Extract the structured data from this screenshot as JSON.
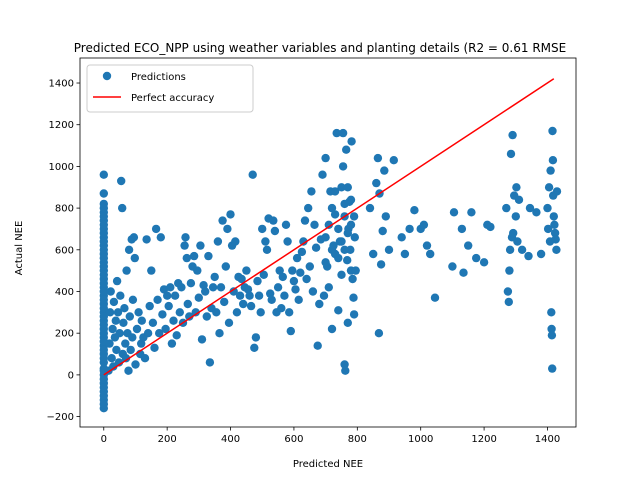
{
  "chart_data": {
    "type": "scatter",
    "title": "Predicted ECO_NPP using weather variables and planting details (R2 = 0.61  RMSE",
    "xlabel": "Predicted NEE",
    "ylabel": "Actual NEE",
    "xlim": [
      -75,
      1490
    ],
    "ylim": [
      -250,
      1520
    ],
    "xticks": [
      0,
      200,
      400,
      600,
      800,
      1000,
      1200,
      1400
    ],
    "yticks": [
      -200,
      0,
      200,
      400,
      600,
      800,
      1000,
      1200,
      1400
    ],
    "grid": false,
    "legend_position": "upper left",
    "series": [
      {
        "name": "Predictions",
        "kind": "scatter",
        "color": "#1f77b4",
        "points": [
          [
            0,
            -160
          ],
          [
            0,
            -120
          ],
          [
            0,
            -80
          ],
          [
            0,
            -40
          ],
          [
            0,
            0
          ],
          [
            0,
            30
          ],
          [
            0,
            60
          ],
          [
            0,
            100
          ],
          [
            0,
            140
          ],
          [
            0,
            180
          ],
          [
            0,
            220
          ],
          [
            0,
            260
          ],
          [
            0,
            300
          ],
          [
            0,
            340
          ],
          [
            0,
            380
          ],
          [
            0,
            420
          ],
          [
            0,
            460
          ],
          [
            0,
            500
          ],
          [
            0,
            540
          ],
          [
            0,
            580
          ],
          [
            0,
            620
          ],
          [
            0,
            660
          ],
          [
            0,
            700
          ],
          [
            0,
            740
          ],
          [
            0,
            780
          ],
          [
            0,
            820
          ],
          [
            0,
            870
          ],
          [
            0,
            960
          ],
          [
            0,
            640
          ],
          [
            0,
            560
          ],
          [
            0,
            480
          ],
          [
            0,
            360
          ],
          [
            0,
            240
          ],
          [
            0,
            160
          ],
          [
            0,
            80
          ],
          [
            0,
            20
          ],
          [
            0,
            -20
          ],
          [
            0,
            -60
          ],
          [
            0,
            -100
          ],
          [
            0,
            -140
          ],
          [
            0,
            120
          ],
          [
            0,
            200
          ],
          [
            0,
            280
          ],
          [
            0,
            320
          ],
          [
            0,
            400
          ],
          [
            0,
            440
          ],
          [
            0,
            520
          ],
          [
            0,
            600
          ],
          [
            0,
            680
          ],
          [
            0,
            720
          ],
          [
            0,
            760
          ],
          [
            0,
            800
          ],
          [
            15,
            20
          ],
          [
            18,
            150
          ],
          [
            20,
            300
          ],
          [
            22,
            400
          ],
          [
            25,
            80
          ],
          [
            28,
            220
          ],
          [
            30,
            40
          ],
          [
            32,
            350
          ],
          [
            35,
            180
          ],
          [
            38,
            260
          ],
          [
            40,
            120
          ],
          [
            42,
            450
          ],
          [
            45,
            300
          ],
          [
            48,
            60
          ],
          [
            50,
            200
          ],
          [
            52,
            380
          ],
          [
            55,
            930
          ],
          [
            58,
            800
          ],
          [
            60,
            100
          ],
          [
            62,
            250
          ],
          [
            65,
            320
          ],
          [
            68,
            150
          ],
          [
            70,
            80
          ],
          [
            72,
            500
          ],
          [
            75,
            200
          ],
          [
            78,
            20
          ],
          [
            80,
            600
          ],
          [
            82,
            280
          ],
          [
            85,
            120
          ],
          [
            88,
            650
          ],
          [
            90,
            180
          ],
          [
            92,
            360
          ],
          [
            95,
            660
          ],
          [
            98,
            560
          ],
          [
            100,
            50
          ],
          [
            105,
            220
          ],
          [
            110,
            300
          ],
          [
            115,
            100
          ],
          [
            118,
            150
          ],
          [
            120,
            260
          ],
          [
            125,
            180
          ],
          [
            130,
            80
          ],
          [
            135,
            650
          ],
          [
            140,
            200
          ],
          [
            145,
            330
          ],
          [
            150,
            500
          ],
          [
            155,
            250
          ],
          [
            160,
            130
          ],
          [
            165,
            700
          ],
          [
            170,
            360
          ],
          [
            175,
            200
          ],
          [
            180,
            660
          ],
          [
            185,
            290
          ],
          [
            190,
            410
          ],
          [
            195,
            220
          ],
          [
            200,
            380
          ],
          [
            205,
            330
          ],
          [
            210,
            420
          ],
          [
            215,
            150
          ],
          [
            220,
            260
          ],
          [
            225,
            380
          ],
          [
            230,
            190
          ],
          [
            235,
            440
          ],
          [
            240,
            300
          ],
          [
            245,
            420
          ],
          [
            250,
            250
          ],
          [
            255,
            620
          ],
          [
            258,
            660
          ],
          [
            262,
            560
          ],
          [
            265,
            340
          ],
          [
            270,
            280
          ],
          [
            275,
            440
          ],
          [
            280,
            520
          ],
          [
            285,
            570
          ],
          [
            290,
            300
          ],
          [
            295,
            500
          ],
          [
            300,
            370
          ],
          [
            305,
            620
          ],
          [
            310,
            170
          ],
          [
            315,
            430
          ],
          [
            320,
            400
          ],
          [
            325,
            280
          ],
          [
            330,
            570
          ],
          [
            335,
            60
          ],
          [
            340,
            320
          ],
          [
            345,
            420
          ],
          [
            350,
            470
          ],
          [
            355,
            300
          ],
          [
            360,
            640
          ],
          [
            365,
            200
          ],
          [
            370,
            420
          ],
          [
            375,
            740
          ],
          [
            380,
            350
          ],
          [
            385,
            520
          ],
          [
            390,
            700
          ],
          [
            395,
            250
          ],
          [
            400,
            770
          ],
          [
            405,
            620
          ],
          [
            410,
            400
          ],
          [
            415,
            640
          ],
          [
            420,
            300
          ],
          [
            425,
            470
          ],
          [
            430,
            380
          ],
          [
            435,
            460
          ],
          [
            440,
            340
          ],
          [
            445,
            420
          ],
          [
            450,
            500
          ],
          [
            455,
            410
          ],
          [
            460,
            380
          ],
          [
            465,
            330
          ],
          [
            470,
            960
          ],
          [
            475,
            130
          ],
          [
            480,
            180
          ],
          [
            485,
            450
          ],
          [
            490,
            380
          ],
          [
            495,
            300
          ],
          [
            500,
            700
          ],
          [
            505,
            480
          ],
          [
            510,
            640
          ],
          [
            515,
            600
          ],
          [
            520,
            750
          ],
          [
            525,
            390
          ],
          [
            530,
            360
          ],
          [
            535,
            740
          ],
          [
            540,
            690
          ],
          [
            545,
            300
          ],
          [
            550,
            420
          ],
          [
            555,
            500
          ],
          [
            560,
            320
          ],
          [
            565,
            470
          ],
          [
            570,
            380
          ],
          [
            575,
            720
          ],
          [
            580,
            640
          ],
          [
            585,
            300
          ],
          [
            590,
            210
          ],
          [
            595,
            500
          ],
          [
            600,
            450
          ],
          [
            605,
            410
          ],
          [
            610,
            560
          ],
          [
            615,
            360
          ],
          [
            620,
            490
          ],
          [
            625,
            590
          ],
          [
            630,
            640
          ],
          [
            635,
            740
          ],
          [
            640,
            460
          ],
          [
            645,
            800
          ],
          [
            650,
            520
          ],
          [
            655,
            880
          ],
          [
            660,
            400
          ],
          [
            665,
            720
          ],
          [
            670,
            610
          ],
          [
            675,
            140
          ],
          [
            680,
            340
          ],
          [
            685,
            650
          ],
          [
            690,
            960
          ],
          [
            695,
            380
          ],
          [
            700,
            1040
          ],
          [
            705,
            520
          ],
          [
            710,
            420
          ],
          [
            715,
            880
          ],
          [
            720,
            220
          ],
          [
            725,
            620
          ],
          [
            730,
            770
          ],
          [
            735,
            1160
          ],
          [
            740,
            310
          ],
          [
            745,
            640
          ],
          [
            750,
            900
          ],
          [
            755,
            1160
          ],
          [
            760,
            50
          ],
          [
            762,
            20
          ],
          [
            765,
            1080
          ],
          [
            768,
            550
          ],
          [
            770,
            250
          ],
          [
            772,
            700
          ],
          [
            775,
            830
          ],
          [
            778,
            600
          ],
          [
            780,
            500
          ],
          [
            782,
            1120
          ],
          [
            785,
            460
          ],
          [
            788,
            370
          ],
          [
            790,
            290
          ],
          [
            792,
            660
          ],
          [
            795,
            500
          ],
          [
            700,
            660
          ],
          [
            710,
            720
          ],
          [
            720,
            800
          ],
          [
            730,
            880
          ],
          [
            740,
            560
          ],
          [
            750,
            480
          ],
          [
            760,
            600
          ],
          [
            770,
            680
          ],
          [
            780,
            840
          ],
          [
            790,
            760
          ],
          [
            700,
            540
          ],
          [
            720,
            600
          ],
          [
            740,
            700
          ],
          [
            760,
            760
          ],
          [
            780,
            720
          ],
          [
            750,
            640
          ],
          [
            730,
            580
          ],
          [
            760,
            820
          ],
          [
            770,
            900
          ],
          [
            755,
            1000
          ],
          [
            840,
            800
          ],
          [
            850,
            580
          ],
          [
            860,
            920
          ],
          [
            865,
            1040
          ],
          [
            868,
            200
          ],
          [
            870,
            870
          ],
          [
            875,
            530
          ],
          [
            880,
            690
          ],
          [
            885,
            980
          ],
          [
            890,
            760
          ],
          [
            900,
            600
          ],
          [
            915,
            1030
          ],
          [
            940,
            660
          ],
          [
            950,
            580
          ],
          [
            965,
            700
          ],
          [
            980,
            790
          ],
          [
            1000,
            700
          ],
          [
            1010,
            720
          ],
          [
            1020,
            620
          ],
          [
            1030,
            580
          ],
          [
            1045,
            370
          ],
          [
            1100,
            520
          ],
          [
            1105,
            780
          ],
          [
            1130,
            700
          ],
          [
            1135,
            490
          ],
          [
            1150,
            620
          ],
          [
            1160,
            780
          ],
          [
            1175,
            560
          ],
          [
            1200,
            540
          ],
          [
            1210,
            720
          ],
          [
            1220,
            710
          ],
          [
            1270,
            800
          ],
          [
            1275,
            400
          ],
          [
            1278,
            350
          ],
          [
            1280,
            500
          ],
          [
            1282,
            600
          ],
          [
            1285,
            1060
          ],
          [
            1288,
            660
          ],
          [
            1290,
            1150
          ],
          [
            1292,
            680
          ],
          [
            1295,
            860
          ],
          [
            1300,
            760
          ],
          [
            1302,
            900
          ],
          [
            1305,
            640
          ],
          [
            1310,
            840
          ],
          [
            1320,
            600
          ],
          [
            1340,
            570
          ],
          [
            1345,
            800
          ],
          [
            1365,
            780
          ],
          [
            1380,
            580
          ],
          [
            1400,
            800
          ],
          [
            1402,
            700
          ],
          [
            1405,
            900
          ],
          [
            1408,
            640
          ],
          [
            1410,
            980
          ],
          [
            1412,
            300
          ],
          [
            1413,
            220
          ],
          [
            1414,
            190
          ],
          [
            1415,
            30
          ],
          [
            1416,
            1170
          ],
          [
            1417,
            1030
          ],
          [
            1418,
            860
          ],
          [
            1420,
            760
          ],
          [
            1422,
            720
          ],
          [
            1424,
            680
          ],
          [
            1426,
            650
          ],
          [
            1428,
            600
          ],
          [
            1430,
            880
          ]
        ]
      },
      {
        "name": "Perfect accuracy",
        "kind": "line",
        "color": "#ff0000",
        "points": [
          [
            0,
            0
          ],
          [
            1420,
            1420
          ]
        ]
      }
    ]
  }
}
